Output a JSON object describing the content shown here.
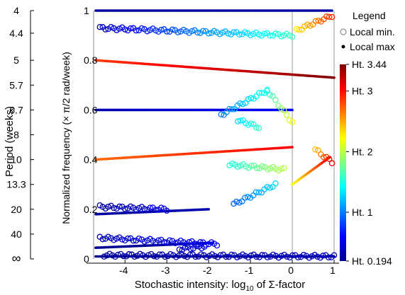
{
  "chart_data": {
    "type": "scatter",
    "xlabel": "Stochastic intensity: log",
    "xlabel_sub": "10",
    "xlabel_tail": " of Σ-factor",
    "ylabel": "Normalized frequency (× π/2 rad/week)",
    "left_axis_label": "Period (weeks)",
    "xlim": [
      -4.75,
      1.05
    ],
    "ylim": [
      0,
      1
    ],
    "xticks": [
      "-4",
      "-3",
      "-2",
      "-1",
      "0",
      "1"
    ],
    "xtick_values": [
      -4,
      -3,
      -2,
      -1,
      0,
      1
    ],
    "yticks": [
      "0",
      "0.2",
      "0.4",
      "0.6",
      "0.8",
      "1"
    ],
    "ytick_values": [
      0,
      0.2,
      0.4,
      0.6,
      0.8,
      1
    ],
    "period_ticks": [
      "4",
      "4.4",
      "5",
      "5.7",
      "6.7",
      "8",
      "10",
      "13.3",
      "20",
      "40",
      "∞"
    ],
    "period_tick_values": [
      1.0,
      0.909,
      0.8,
      0.7,
      0.6,
      0.5,
      0.4,
      0.3,
      0.2,
      0.1,
      0.0
    ],
    "vertical_lines_x": [
      0,
      1
    ],
    "legend": {
      "title": "Legend",
      "min_label": "Local min.",
      "max_label": "Local max"
    },
    "colorbar": {
      "labels": [
        "Ht. 3.44",
        "Ht. 3",
        "Ht. 2",
        "Ht. 1",
        "Ht. 0.194"
      ],
      "label_values": [
        3.44,
        3,
        2,
        1,
        0.194
      ],
      "range": [
        0.194,
        3.44
      ],
      "colormap": "jet"
    },
    "series": [
      {
        "kind": "max",
        "x_range": [
          -4.7,
          0.95
        ],
        "y_start": 1.0,
        "y_end": 1.0,
        "h_start": 0.3,
        "h_end": 0.3
      },
      {
        "kind": "max",
        "x_range": [
          -4.7,
          1.0
        ],
        "y_start": 0.8,
        "y_end": 0.73,
        "h_start": 2.85,
        "h_end": 3.44
      },
      {
        "kind": "max",
        "x_range": [
          -4.7,
          0.0
        ],
        "y_start": 0.6,
        "y_end": 0.6,
        "h_start": 0.35,
        "h_end": 0.6
      },
      {
        "kind": "max",
        "x_range": [
          -4.7,
          0.0
        ],
        "y_start": 0.4,
        "y_end": 0.45,
        "h_start": 2.7,
        "h_end": 3.05
      },
      {
        "kind": "max",
        "x_range": [
          -4.7,
          -2.0
        ],
        "y_start": 0.18,
        "y_end": 0.2,
        "h_start": 0.3,
        "h_end": 0.35
      },
      {
        "kind": "max",
        "x_range": [
          -4.7,
          -1.9
        ],
        "y_start": 0.045,
        "y_end": 0.065,
        "h_start": 0.25,
        "h_end": 0.3
      },
      {
        "kind": "max",
        "x_range": [
          -4.7,
          1.0
        ],
        "y_start": 0.01,
        "y_end": 0.01,
        "h_start": 0.25,
        "h_end": 0.25
      },
      {
        "kind": "min",
        "x_range": [
          -4.6,
          0.0
        ],
        "y_start": 0.93,
        "y_end": 0.9,
        "h_start": 0.4,
        "h_end": 1.6
      },
      {
        "kind": "min",
        "x_range": [
          0.1,
          0.95
        ],
        "y_start": 0.92,
        "y_end": 0.98,
        "h_start": 2.3,
        "h_end": 2.9
      },
      {
        "kind": "min",
        "x_range": [
          -1.7,
          -0.6
        ],
        "y_start": 0.58,
        "y_end": 0.68,
        "h_start": 1.0,
        "h_end": 1.5
      },
      {
        "kind": "min",
        "x_range": [
          -0.6,
          0.0
        ],
        "y_start": 0.68,
        "y_end": 0.55,
        "h_start": 1.5,
        "h_end": 2.2
      },
      {
        "kind": "min",
        "x_range": [
          -1.3,
          -0.8
        ],
        "y_start": 0.56,
        "y_end": 0.53,
        "h_start": 1.3,
        "h_end": 1.6
      },
      {
        "kind": "min",
        "x_range": [
          -1.5,
          -0.2
        ],
        "y_start": 0.38,
        "y_end": 0.36,
        "h_start": 1.5,
        "h_end": 2.0
      },
      {
        "kind": "min",
        "x_range": [
          -1.4,
          -0.4
        ],
        "y_start": 0.22,
        "y_end": 0.3,
        "h_start": 0.9,
        "h_end": 1.3
      },
      {
        "kind": "min",
        "x_range": [
          -4.6,
          -3.0
        ],
        "y_start": 0.21,
        "y_end": 0.2,
        "h_start": 0.3,
        "h_end": 0.5
      },
      {
        "kind": "min",
        "x_range": [
          -4.6,
          -1.8
        ],
        "y_start": 0.085,
        "y_end": 0.06,
        "h_start": 0.4,
        "h_end": 0.6
      },
      {
        "kind": "min",
        "x_range": [
          -2.7,
          -2.1
        ],
        "y_start": 0.04,
        "y_end": 0.05,
        "h_start": 0.4,
        "h_end": 0.5
      },
      {
        "kind": "min",
        "x_range": [
          -4.5,
          1.0
        ],
        "y_start": 0.015,
        "y_end": 0.01,
        "h_start": 0.3,
        "h_end": 0.4
      },
      {
        "kind": "max",
        "x_range": [
          0.0,
          0.9
        ],
        "y_start": 0.3,
        "y_end": 0.41,
        "h_start": 2.2,
        "h_end": 3.1
      },
      {
        "kind": "min",
        "x_range": [
          0.55,
          0.95
        ],
        "y_start": 0.44,
        "y_end": 0.39,
        "h_start": 2.4,
        "h_end": 3.1
      }
    ]
  }
}
